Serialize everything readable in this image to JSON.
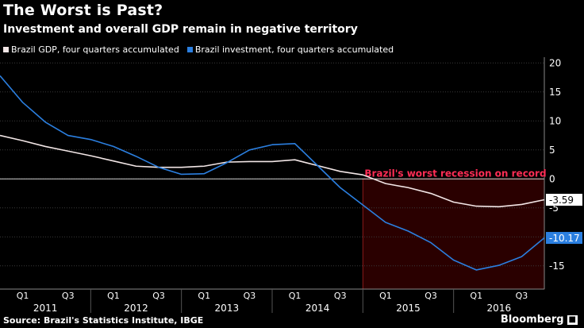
{
  "header": {
    "title": "The Worst is Past?",
    "subtitle": "Investment and overall GDP remain in negative territory"
  },
  "footer": {
    "source": "Source: Brazil's Statistics Institute, IBGE",
    "brand": "Bloomberg",
    "brand_icon": "bloomberg-logo-icon"
  },
  "colors": {
    "background": "#000000",
    "gdp": "#f2e6e6",
    "investment": "#2b7fe0",
    "recession_fill": "#2a0000",
    "recession_border": "#8b1a1a",
    "annotation": "#ff2d55",
    "grid": "#3a3a3a"
  },
  "chart_data": {
    "type": "line",
    "title": "The Worst is Past?",
    "subtitle": "Investment and overall GDP remain in negative territory",
    "ylim": [
      -19,
      21
    ],
    "yticks": [
      20,
      15,
      10,
      5,
      0,
      -5,
      -10,
      -15
    ],
    "ytick_labels": [
      "20",
      "15",
      "10",
      "5",
      "0",
      "-5",
      "-10",
      "-15"
    ],
    "quarter_labels": [
      "Q1",
      "Q3",
      "Q1",
      "Q3",
      "Q1",
      "Q3",
      "Q1",
      "Q3",
      "Q1",
      "Q3",
      "Q1",
      "Q3"
    ],
    "quarter_label_positions": [
      1,
      3,
      5,
      7,
      9,
      11,
      13,
      15,
      17,
      19,
      21,
      23
    ],
    "years": [
      {
        "label": "2011",
        "start": 0,
        "end": 4
      },
      {
        "label": "2012",
        "start": 4,
        "end": 8
      },
      {
        "label": "2013",
        "start": 8,
        "end": 12
      },
      {
        "label": "2014",
        "start": 12,
        "end": 16
      },
      {
        "label": "2015",
        "start": 16,
        "end": 20
      },
      {
        "label": "2016",
        "start": 20,
        "end": 24
      }
    ],
    "x": [
      0,
      1,
      2,
      3,
      4,
      5,
      6,
      7,
      8,
      9,
      10,
      11,
      12,
      13,
      14,
      15,
      16,
      17,
      18,
      19,
      20,
      21,
      22,
      23,
      24
    ],
    "series": [
      {
        "name": "Brazil GDP, four quarters accumulated",
        "values": [
          7.5,
          6.6,
          5.6,
          4.8,
          4.0,
          3.1,
          2.2,
          2.0,
          2.0,
          2.2,
          2.9,
          3.0,
          3.0,
          3.3,
          2.3,
          1.3,
          0.7,
          -0.8,
          -1.5,
          -2.5,
          -4.0,
          -4.7,
          -4.8,
          -4.4,
          -3.59
        ],
        "end_label": "-3.59"
      },
      {
        "name": "Brazil investment, four quarters accumulated",
        "values": [
          17.8,
          13.2,
          9.8,
          7.5,
          6.8,
          5.6,
          3.9,
          2.0,
          0.8,
          0.9,
          2.8,
          5.0,
          5.9,
          6.1,
          2.3,
          -1.5,
          -4.5,
          -7.5,
          -9.0,
          -11.0,
          -14.0,
          -15.7,
          -14.9,
          -13.4,
          -10.17
        ],
        "end_label": "-10.17"
      }
    ],
    "annotations": [
      {
        "text": "Brazil's worst recession on record",
        "x_start": 16,
        "x_end": 24,
        "y_top": 0,
        "y_bottom": -19
      }
    ]
  }
}
